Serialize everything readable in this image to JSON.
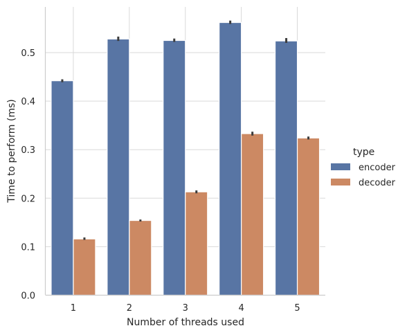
{
  "chart_data": {
    "type": "bar",
    "title": "",
    "xlabel": "Number of threads used",
    "ylabel": "Time to perform (ms)",
    "categories": [
      "1",
      "2",
      "3",
      "4",
      "5"
    ],
    "series": [
      {
        "name": "encoder",
        "color": "#5875a4",
        "values": [
          0.442,
          0.528,
          0.525,
          0.562,
          0.524
        ],
        "ci": [
          [
            0.439,
            0.445
          ],
          [
            0.524,
            0.533
          ],
          [
            0.522,
            0.529
          ],
          [
            0.559,
            0.566
          ],
          [
            0.52,
            0.53
          ]
        ]
      },
      {
        "name": "decoder",
        "color": "#cc8963",
        "values": [
          0.116,
          0.154,
          0.213,
          0.333,
          0.324
        ],
        "ci": [
          [
            0.114,
            0.119
          ],
          [
            0.152,
            0.156
          ],
          [
            0.21,
            0.216
          ],
          [
            0.329,
            0.337
          ],
          [
            0.321,
            0.327
          ]
        ]
      }
    ],
    "yticks": [
      "0.0",
      "0.1",
      "0.2",
      "0.3",
      "0.4",
      "0.5"
    ],
    "ylim": [
      0,
      0.595
    ],
    "grid": true,
    "legend": {
      "title": "type",
      "placement": "right"
    }
  }
}
